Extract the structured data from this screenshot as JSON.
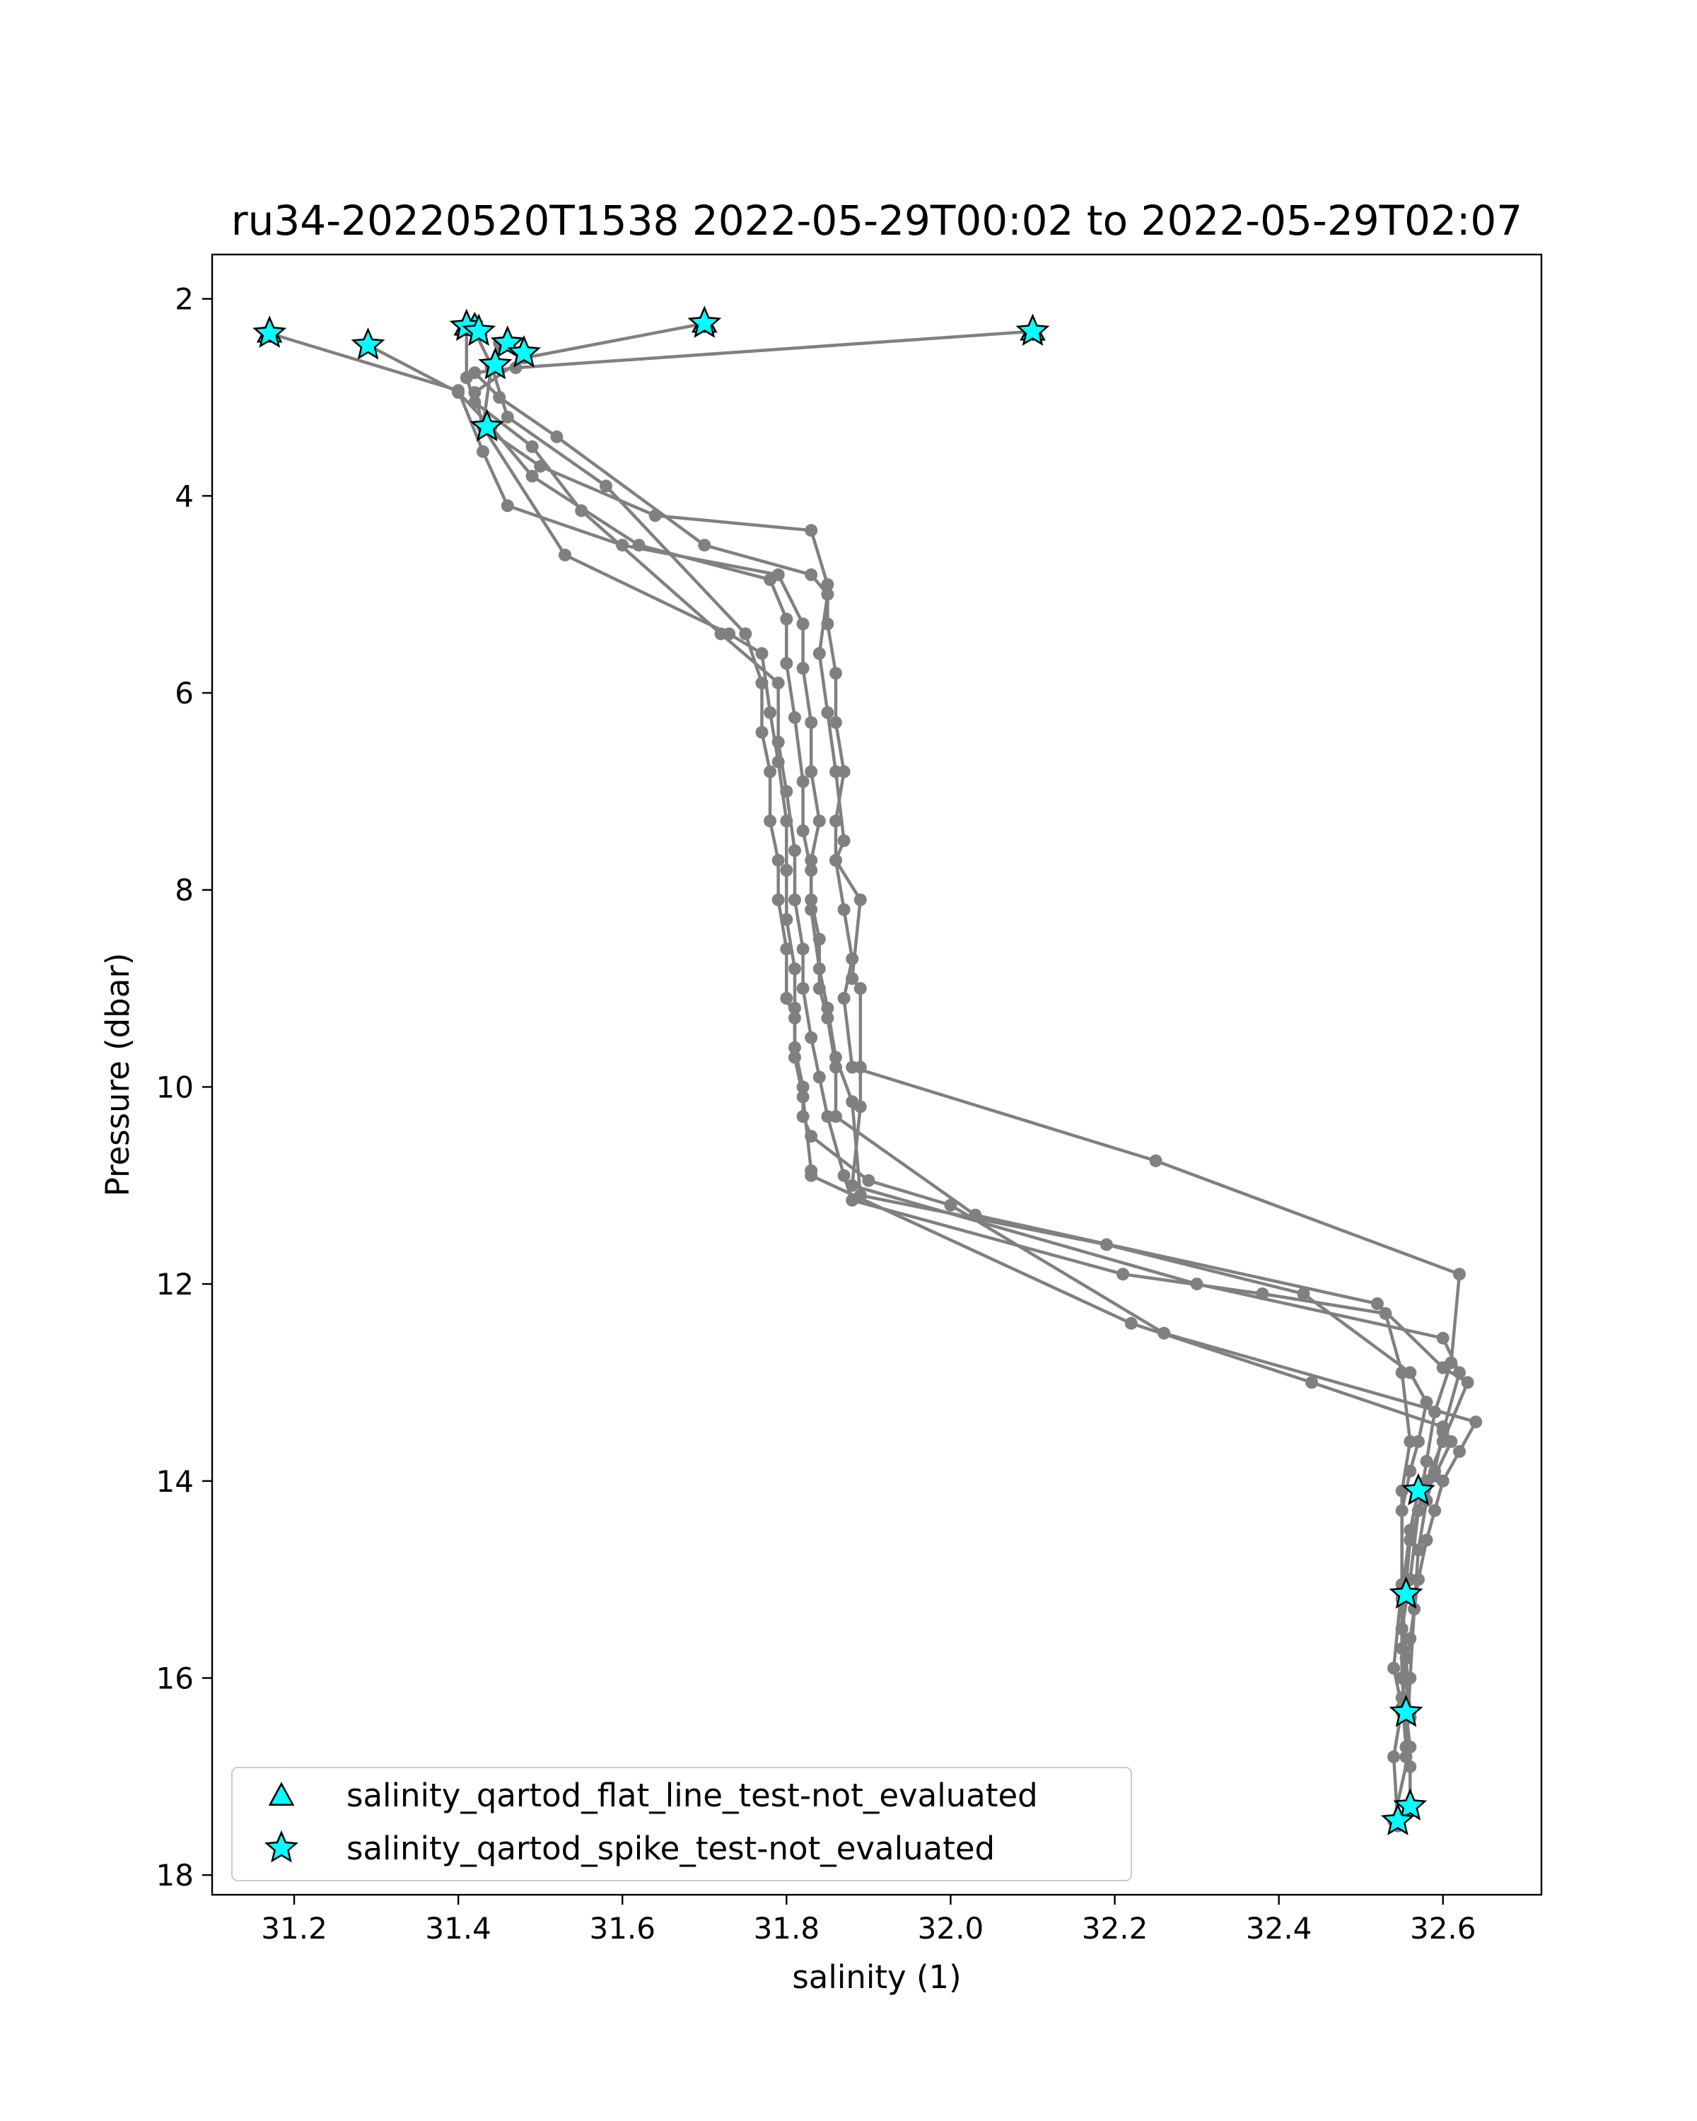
{
  "chart_data": {
    "type": "line",
    "title": "ru34-20220520T1538 2022-05-29T00:02 to 2022-05-29T02:07",
    "xlabel": "salinity (1)",
    "ylabel": "Pressure (dbar)",
    "xlim": [
      31.1,
      32.72
    ],
    "ylim": [
      18.2,
      1.55
    ],
    "y_inverted": true,
    "xticks": [
      31.2,
      31.4,
      31.6,
      31.8,
      32.0,
      32.2,
      32.4,
      32.6
    ],
    "xtick_labels": [
      "31.2",
      "31.4",
      "31.6",
      "31.8",
      "32.0",
      "32.2",
      "32.4",
      "32.6"
    ],
    "yticks": [
      2,
      4,
      6,
      8,
      10,
      12,
      14,
      16,
      18
    ],
    "ytick_labels": [
      "2",
      "4",
      "6",
      "8",
      "10",
      "12",
      "14",
      "16",
      "18"
    ],
    "grid": false,
    "legend_position": "lower-left",
    "colors": {
      "line": "#808080",
      "marker_fill": "#00ffff",
      "marker_edge": "#000000",
      "frame": "#000000"
    },
    "series": [
      {
        "style": "profile",
        "x": [
          32.1,
          31.47,
          31.42,
          31.45,
          31.52,
          31.7,
          31.83,
          31.85,
          31.84,
          31.85,
          31.86,
          31.87,
          31.86,
          31.89,
          31.88,
          31.89,
          31.89,
          31.89,
          31.88,
          32.3,
          32.6,
          32.62,
          32.6,
          32.59,
          32.58,
          32.57,
          32.565,
          32.56,
          32.555
        ],
        "y": [
          2.33,
          2.7,
          2.75,
          3.0,
          3.4,
          4.5,
          4.8,
          5.0,
          5.6,
          6.2,
          6.8,
          7.5,
          7.7,
          8.1,
          8.9,
          9.0,
          9.8,
          10.2,
          11.0,
          12.0,
          12.55,
          12.9,
          13.5,
          13.9,
          14.2,
          14.7,
          15.3,
          16.0,
          16.8
        ]
      },
      {
        "x": [
          31.7,
          31.48,
          31.42,
          31.43,
          31.5,
          31.64,
          31.83,
          31.85,
          31.85,
          31.86,
          31.86,
          31.87,
          31.86,
          31.86,
          31.87,
          31.88,
          31.87,
          31.88,
          32.25,
          32.62,
          32.61,
          32.59,
          32.58,
          32.57,
          32.56,
          32.55,
          32.55,
          32.56,
          32.56
        ],
        "y": [
          2.25,
          2.6,
          2.95,
          3.3,
          3.7,
          4.2,
          4.35,
          4.9,
          5.3,
          5.8,
          6.3,
          6.8,
          7.3,
          7.7,
          8.2,
          8.7,
          9.1,
          9.8,
          10.75,
          11.9,
          12.8,
          13.3,
          13.8,
          14.3,
          15.0,
          15.5,
          16.0,
          16.9,
          17.3
        ]
      },
      {
        "x": [
          31.17,
          31.4,
          31.43,
          31.46,
          31.6,
          31.79,
          31.82,
          31.82,
          31.83,
          31.83,
          31.84,
          31.83,
          31.83,
          31.84,
          31.84,
          31.85,
          31.86,
          31.86,
          32.03,
          32.52,
          32.6,
          32.63,
          32.6,
          32.58,
          32.56,
          32.55,
          32.55,
          32.56,
          32.54
        ],
        "y": [
          2.35,
          2.93,
          3.55,
          4.1,
          4.5,
          4.8,
          5.3,
          5.75,
          6.3,
          6.8,
          7.3,
          7.7,
          8.1,
          8.5,
          9.0,
          9.3,
          9.8,
          10.3,
          11.3,
          12.2,
          12.85,
          13.0,
          13.6,
          14.0,
          14.6,
          15.5,
          16.0,
          16.7,
          17.45
        ]
      },
      {
        "x": [
          31.29,
          31.4,
          31.44,
          31.49,
          31.62,
          31.78,
          31.8,
          31.8,
          31.81,
          31.82,
          31.82,
          31.83,
          31.83,
          31.84,
          31.85,
          31.86,
          31.88,
          31.89,
          32.19,
          32.43,
          32.56,
          32.58,
          32.57,
          32.56,
          32.55,
          32.55,
          32.55,
          32.56,
          32.55
        ],
        "y": [
          2.47,
          2.95,
          3.3,
          3.8,
          4.5,
          4.85,
          5.25,
          5.7,
          6.25,
          6.9,
          7.4,
          7.8,
          8.2,
          8.8,
          9.2,
          9.7,
          10.15,
          11.1,
          11.6,
          12.1,
          12.9,
          13.2,
          13.6,
          13.9,
          14.3,
          15.2,
          15.7,
          16.4,
          16.35
        ]
      },
      {
        "x": [
          31.41,
          31.41,
          31.42,
          31.49,
          31.55,
          31.72,
          31.79,
          31.79,
          31.8,
          31.81,
          31.81,
          31.82,
          31.82,
          31.83,
          31.84,
          31.85,
          31.87,
          31.88,
          32.21,
          32.38,
          32.53,
          32.55,
          32.56,
          32.55,
          32.55,
          32.54,
          32.55,
          32.54,
          32.545
        ],
        "y": [
          2.28,
          2.8,
          3.05,
          3.5,
          4.15,
          5.4,
          5.9,
          6.5,
          7.0,
          7.6,
          8.1,
          8.6,
          9.0,
          9.5,
          9.9,
          10.3,
          10.9,
          11.15,
          11.9,
          12.1,
          12.3,
          12.9,
          13.6,
          14.1,
          15.05,
          15.9,
          16.3,
          16.8,
          17.5
        ]
      },
      {
        "x": [
          31.42,
          31.44,
          31.46,
          31.58,
          31.75,
          31.77,
          31.77,
          31.78,
          31.78,
          31.79,
          31.79,
          31.8,
          31.8,
          31.81,
          31.81,
          31.82,
          31.83,
          31.83,
          32.22,
          32.44,
          32.6,
          32.61,
          32.59,
          32.57,
          32.56,
          32.55,
          32.555,
          32.56,
          32.56
        ],
        "y": [
          2.33,
          2.67,
          3.2,
          3.9,
          5.4,
          5.9,
          6.4,
          6.8,
          7.3,
          7.7,
          8.1,
          8.6,
          9.1,
          9.3,
          9.7,
          10.1,
          10.85,
          10.9,
          12.4,
          13.0,
          13.45,
          13.6,
          13.95,
          14.1,
          14.5,
          15.15,
          15.8,
          16.35,
          16.4
        ]
      },
      {
        "x": [
          31.45,
          31.44,
          31.43,
          31.53,
          31.73,
          31.77,
          31.78,
          31.79,
          31.8,
          31.8,
          31.8,
          31.81,
          31.81,
          31.81,
          31.82,
          31.82,
          31.83,
          31.9,
          32.0,
          32.26,
          32.64,
          32.62,
          32.6,
          32.59,
          32.58,
          32.57,
          32.56,
          32.55,
          32.555
        ],
        "y": [
          2.45,
          2.7,
          3.3,
          4.6,
          5.4,
          5.6,
          6.2,
          6.7,
          7.3,
          7.8,
          8.3,
          8.8,
          9.2,
          9.6,
          10.0,
          10.3,
          10.5,
          10.95,
          11.2,
          12.5,
          13.4,
          13.7,
          14.0,
          14.3,
          14.6,
          15.0,
          15.6,
          16.2,
          16.7
        ]
      }
    ],
    "marker_series": [
      {
        "name": "salinity_qartod_flat_line_test-not_evaluated",
        "marker": "triangle",
        "x": [
          32.1,
          31.42,
          31.7,
          31.17,
          31.41
        ],
        "y": [
          2.33,
          2.28,
          2.25,
          2.35,
          2.28
        ]
      },
      {
        "name": "salinity_qartod_spike_test-not_evaluated",
        "marker": "star",
        "x": [
          31.17,
          31.29,
          31.41,
          31.425,
          31.46,
          31.48,
          31.7,
          32.1,
          31.445,
          31.435,
          32.57,
          32.555,
          32.555,
          32.56,
          32.545
        ],
        "y": [
          2.35,
          2.47,
          2.28,
          2.33,
          2.45,
          2.55,
          2.25,
          2.33,
          2.67,
          3.3,
          14.1,
          15.15,
          16.35,
          17.3,
          17.45
        ]
      }
    ]
  }
}
